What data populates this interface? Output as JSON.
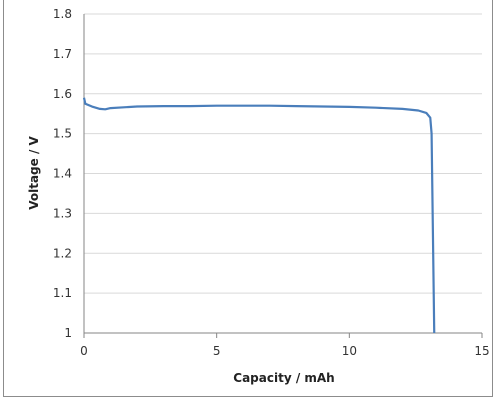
{
  "chart_data": {
    "type": "line",
    "title": "",
    "xlabel": "Capacity  /  mAh",
    "ylabel": "Voltage  /  V",
    "xlim": [
      0,
      15
    ],
    "ylim": [
      1.0,
      1.8
    ],
    "xticks": [
      0,
      5,
      10,
      15
    ],
    "yticks": [
      1,
      1.1,
      1.2,
      1.3,
      1.4,
      1.5,
      1.6,
      1.7,
      1.8
    ],
    "grid": "horizontal",
    "legend": "none",
    "line_color": "#4a7ebb",
    "series": [
      {
        "x": [
          0,
          0.05,
          0.3,
          0.6,
          0.8,
          1.0,
          1.5,
          2.0,
          3.0,
          4.0,
          5.0,
          6.0,
          7.0,
          8.0,
          9.0,
          10.0,
          11.0,
          12.0,
          12.6,
          12.9,
          13.05,
          13.1,
          13.12,
          13.14,
          13.16,
          13.18,
          13.2
        ],
        "y": [
          1.59,
          1.575,
          1.568,
          1.562,
          1.561,
          1.564,
          1.566,
          1.568,
          1.569,
          1.569,
          1.57,
          1.57,
          1.57,
          1.569,
          1.568,
          1.567,
          1.565,
          1.562,
          1.558,
          1.552,
          1.54,
          1.5,
          1.4,
          1.3,
          1.2,
          1.1,
          1.0
        ]
      }
    ]
  }
}
